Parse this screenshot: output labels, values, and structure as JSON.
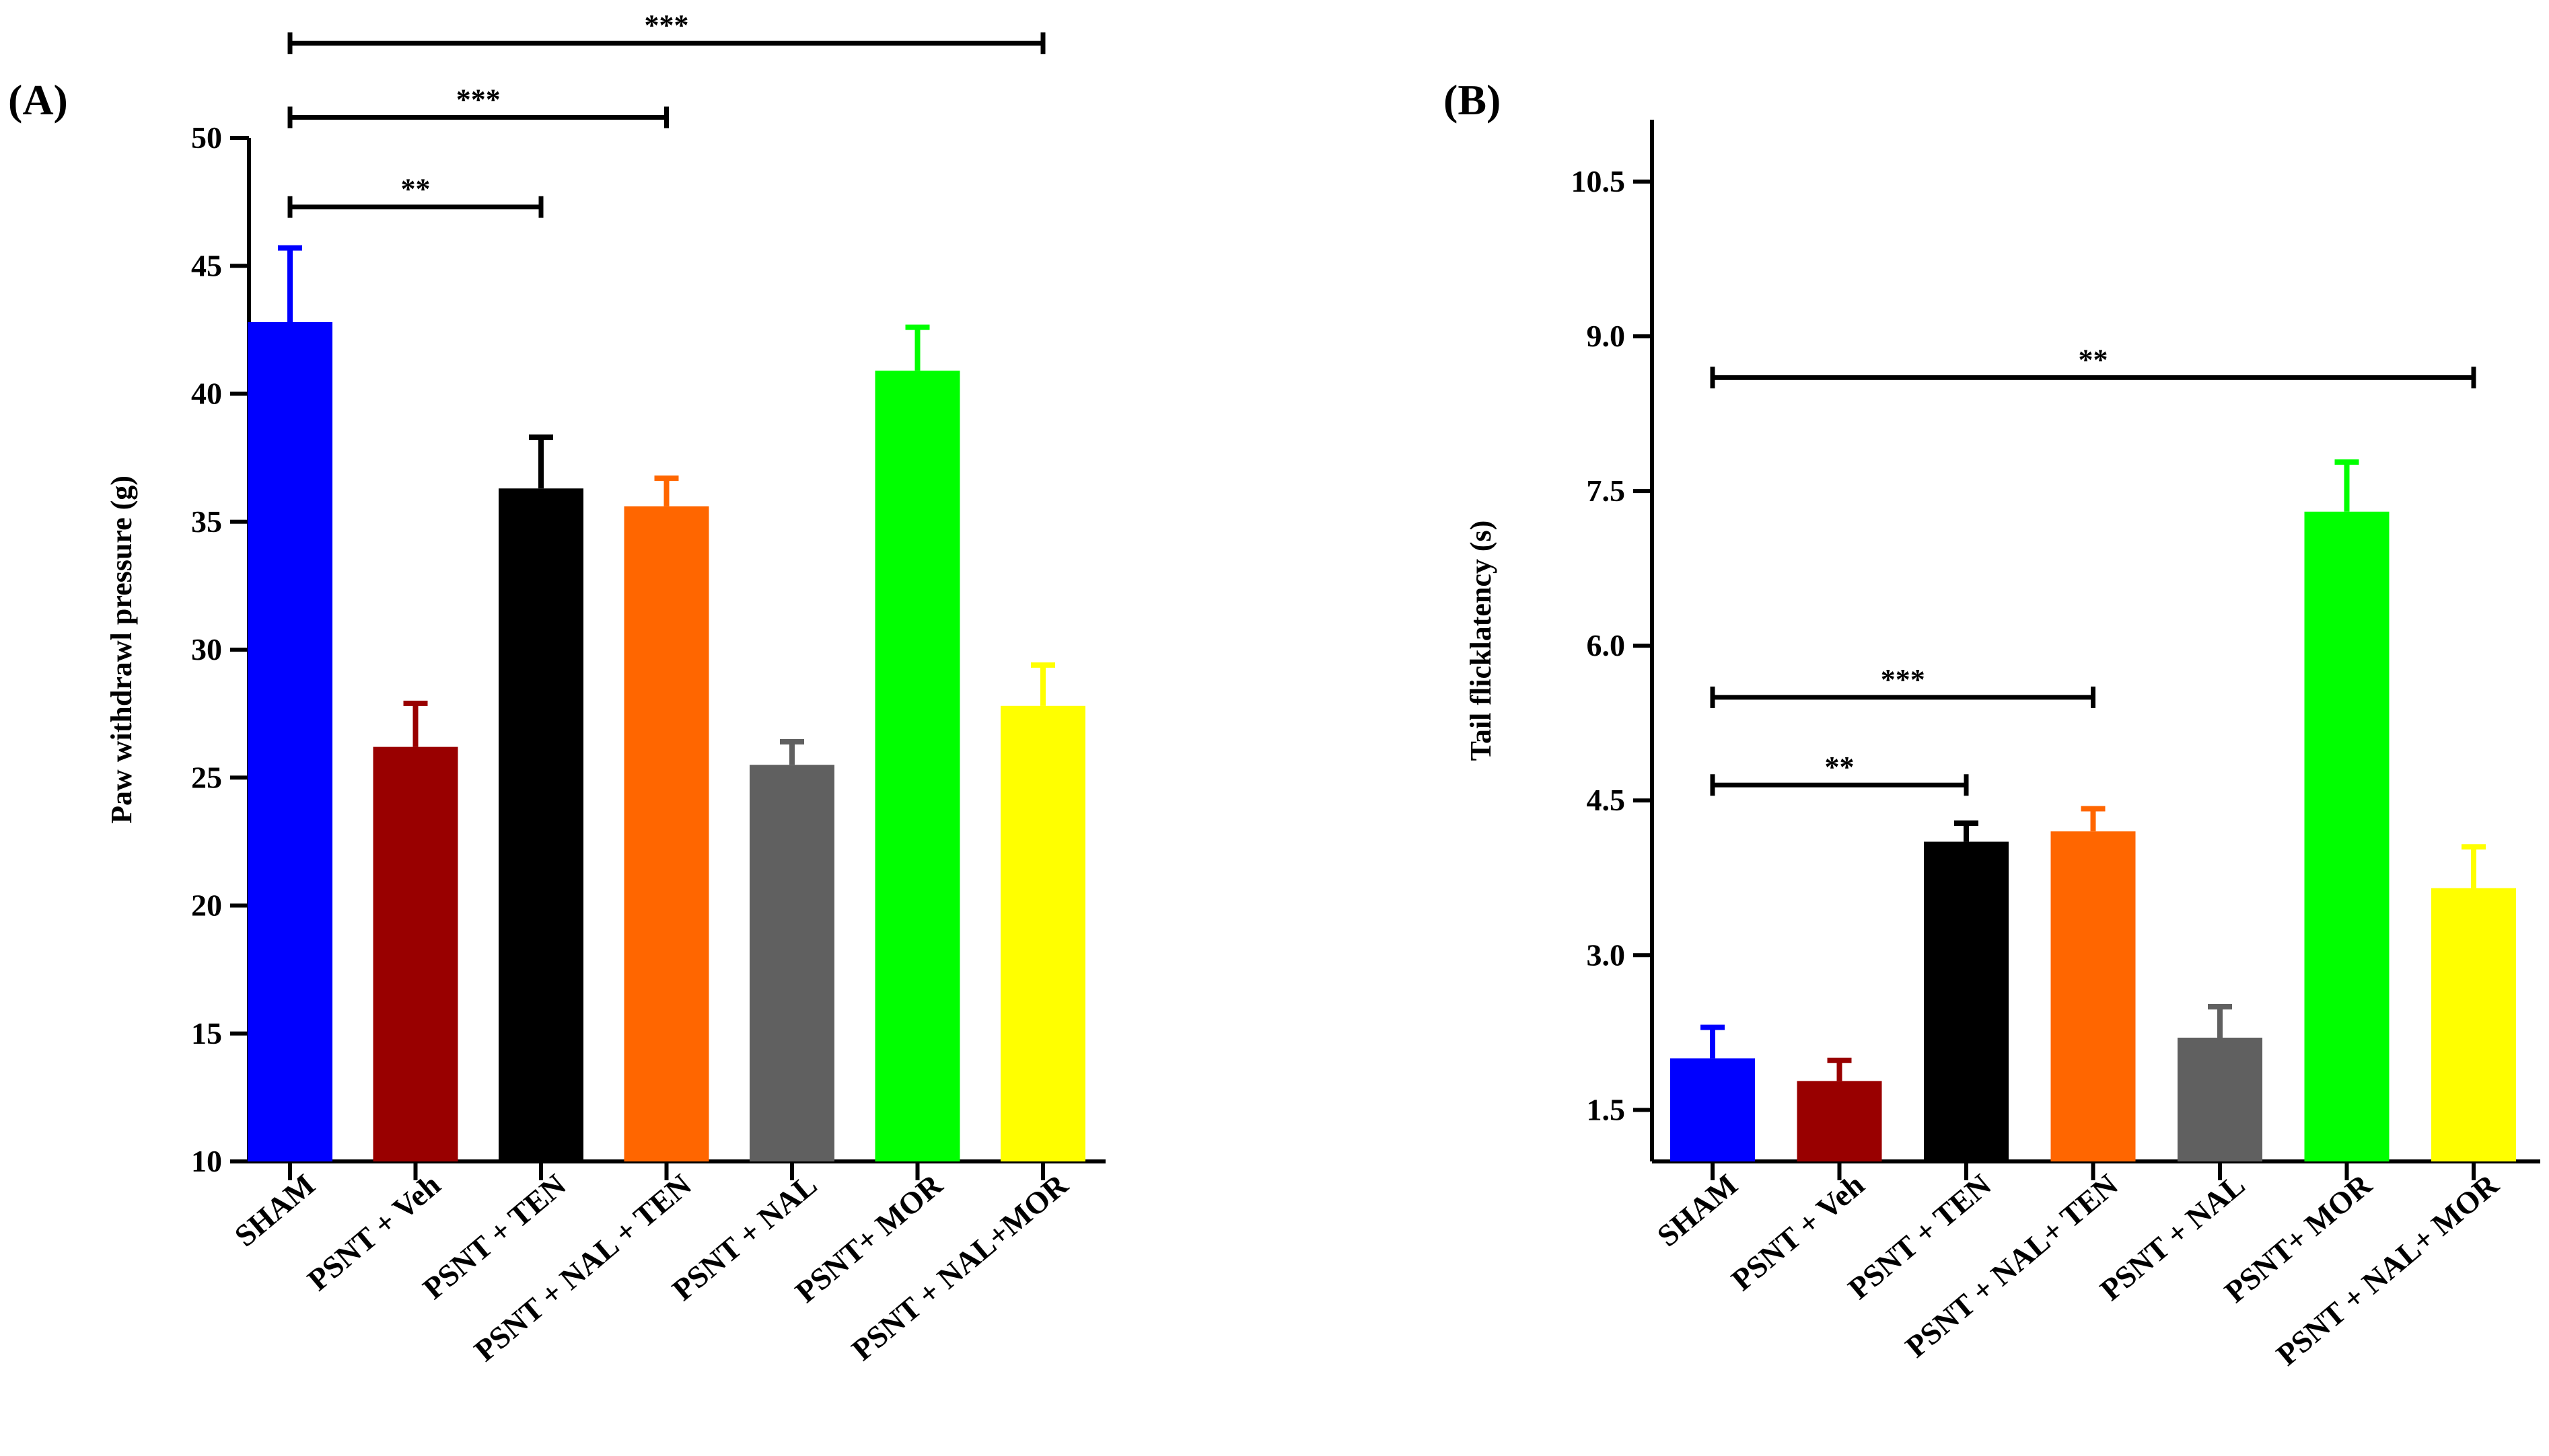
{
  "chart_data": [
    {
      "type": "bar",
      "panel": "(A)",
      "ylabel": "Paw withdrawl pressure (g)",
      "xlabel": "",
      "ylim": [
        10,
        50
      ],
      "yticks": [
        "10",
        "15",
        "20",
        "25",
        "30",
        "35",
        "40",
        "45",
        "50"
      ],
      "categories": [
        "SHAM",
        "PSNT + Veh",
        "PSNT + TEN",
        "PSNT + NAL + TEN",
        "PSNT + NAL",
        "PSNT+ MOR",
        "PSNT + NAL+MOR"
      ],
      "values": [
        42.8,
        26.2,
        36.3,
        35.6,
        25.5,
        40.9,
        27.8
      ],
      "errors": [
        2.9,
        1.7,
        2.0,
        1.1,
        0.9,
        1.7,
        1.6
      ],
      "colors": [
        "#0000ff",
        "#990000",
        "#000000",
        "#ff6600",
        "#606060",
        "#00ff00",
        "#ffff00"
      ],
      "significance": [
        {
          "label": "**",
          "from": 0,
          "to": 2,
          "level": 47.3
        },
        {
          "label": "***",
          "from": 0,
          "to": 3,
          "level": 50.8
        },
        {
          "label": "***",
          "from": 0,
          "to": 6,
          "level": 53.7
        }
      ]
    },
    {
      "type": "bar",
      "panel": "(B)",
      "ylabel": "Tail flicklatency (s)",
      "xlabel": "",
      "ylim": [
        1.0,
        11.1
      ],
      "yticks": [
        "1.5",
        "3.0",
        "4.5",
        "6.0",
        "7.5",
        "9.0",
        "10.5"
      ],
      "categories": [
        "SHAM",
        "PSNT + Veh",
        "PSNT + TEN",
        "PSNT + NAL+ TEN",
        "PSNT + NAL",
        "PSNT+ MOR",
        "PSNT + NAL+ MOR"
      ],
      "values": [
        2.0,
        1.78,
        4.1,
        4.2,
        2.2,
        7.3,
        3.65
      ],
      "errors": [
        0.3,
        0.2,
        0.18,
        0.22,
        0.3,
        0.48,
        0.4
      ],
      "colors": [
        "#0000ff",
        "#990000",
        "#000000",
        "#ff6600",
        "#606060",
        "#00ff00",
        "#ffff00"
      ],
      "significance": [
        {
          "label": "**",
          "from": 0,
          "to": 6,
          "level": 8.6
        },
        {
          "label": "***",
          "from": 0,
          "to": 3,
          "level": 5.5
        },
        {
          "label": "**",
          "from": 0,
          "to": 2,
          "level": 4.65
        }
      ]
    }
  ]
}
